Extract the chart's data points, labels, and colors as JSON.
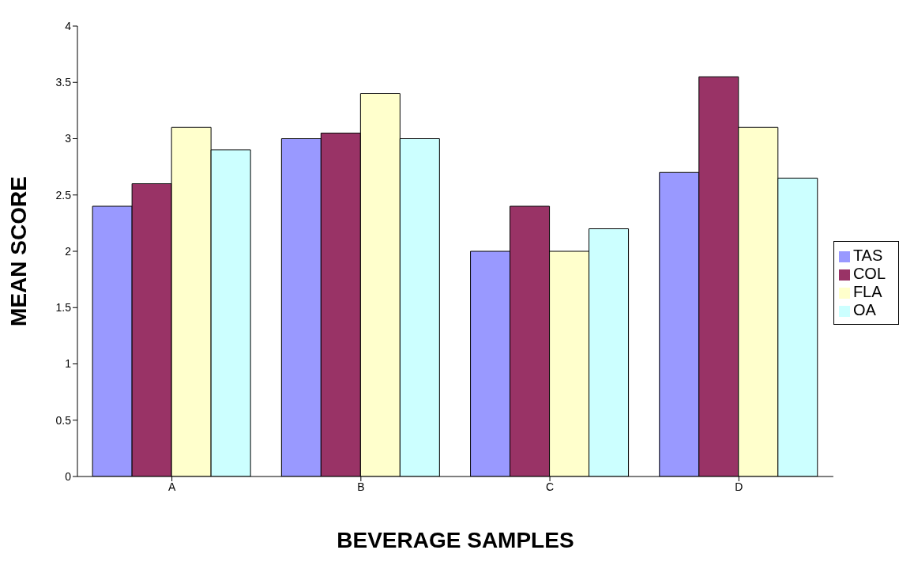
{
  "chart_data": {
    "type": "bar",
    "xlabel": "BEVERAGE SAMPLES",
    "ylabel": "MEAN SCORE",
    "categories": [
      "A",
      "B",
      "C",
      "D"
    ],
    "series": [
      {
        "name": "TAS",
        "color": "#9999ff",
        "values": [
          2.4,
          3.0,
          2.0,
          2.7
        ]
      },
      {
        "name": "COL",
        "color": "#993366",
        "values": [
          2.6,
          3.05,
          2.4,
          3.55
        ]
      },
      {
        "name": "FLA",
        "color": "#ffffcc",
        "values": [
          3.1,
          3.4,
          2.0,
          3.1
        ]
      },
      {
        "name": "OA",
        "color": "#ccffff",
        "values": [
          2.9,
          3.0,
          2.2,
          2.65
        ]
      }
    ],
    "ylim": [
      0,
      4
    ],
    "yticks": [
      0,
      0.5,
      1,
      1.5,
      2,
      2.5,
      3,
      3.5,
      4
    ],
    "grid": false,
    "legend": "right"
  }
}
